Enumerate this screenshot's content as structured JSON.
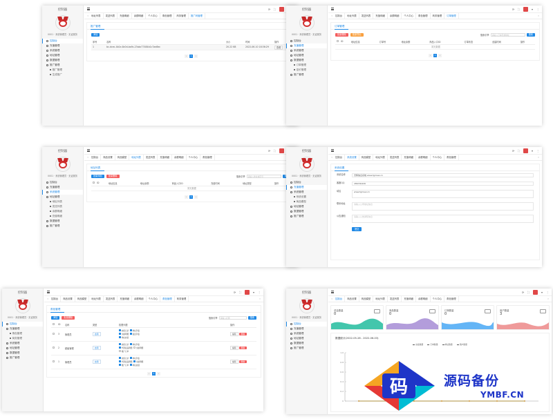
{
  "common": {
    "brand": "控制器",
    "user_info": "0001 · 系统管理员 · 无证服务",
    "tabs_row": [
      "首页",
      "地址列表",
      "发送列表",
      "充值明细",
      "余额明细",
      "个人中心",
      "角色管理",
      "商务管理",
      "订单管理",
      "推广码"
    ],
    "menu": [
      "控制台",
      "充值管理",
      "系统管理",
      "地址管理",
      "数据管理",
      "推广管理"
    ]
  },
  "p1": {
    "tabs": [
      "地址列表",
      "发送列表",
      "充值明细",
      "余额明细",
      "个人中心",
      "角色管理",
      "商务管理",
      "推广码管理"
    ],
    "active_tab": "推广码管理",
    "menu": [
      "控制台",
      "充值管理",
      "系统管理",
      "地址管理",
      "数据管理",
      "推广管理"
    ],
    "sub": [
      "推广管理",
      "生成推广"
    ],
    "title": "推广管理",
    "add": "添加",
    "headers": [
      "序号",
      "名称",
      "大小",
      "时间",
      "操作"
    ],
    "rows": [
      [
        "1",
        "bc-dcec-4b1e-8c0d-ba9c-23abc77484b1c7ae8ec",
        "20.22 KB",
        "2022-06-10 18:36:29",
        "查看"
      ]
    ],
    "page": "1"
  },
  "p2": {
    "tabs": [
      "控制台",
      "地址列表",
      "发送列表",
      "充值明细",
      "余额明细",
      "个人中心",
      "角色管理",
      "商务管理",
      "订单管理"
    ],
    "active_tab": "订单管理",
    "menu": [
      "控制台",
      "充值管理",
      "系统管理",
      "地址管理",
      "数据管理",
      "推广管理"
    ],
    "sub": [
      "订单管理",
      "定价管理"
    ],
    "title": "订单管理",
    "btn1": "批量删除",
    "btn2": "批量导出",
    "search_label": "搜索引擎",
    "search_placeholder": "请输入订单号或地址",
    "search_btn": "搜索",
    "headers": [
      "ID",
      "地址信息",
      "订单号",
      "地址余额",
      "商品入口ID",
      "订单状态",
      "创建时间",
      "操作"
    ],
    "empty": "暂无数据",
    "page": "1"
  },
  "p3": {
    "tabs": [
      "控制台",
      "商品设置",
      "商品模型",
      "地址列表",
      "发送列表",
      "充值明细",
      "余额明细",
      "个人中心",
      "角色管理"
    ],
    "active_tab": "地址列表",
    "menu": [
      "控制台",
      "充值管理",
      "系统管理",
      "地址管理",
      "数据管理",
      "推广管理"
    ],
    "sub": [
      "地址列表",
      "发送列表",
      "余额明细",
      "充值明细"
    ],
    "title": "地址列表",
    "btn1": "批量添加",
    "btn2": "批量删除",
    "search_label": "搜索引擎",
    "search_placeholder": "请输入地址或序号",
    "search_btn": "搜索",
    "headers": [
      "ID",
      "地址信息",
      "地址余额",
      "商品入口ID",
      "充值时间",
      "地址类型",
      "操作"
    ],
    "empty": "暂无数据",
    "page": "1"
  },
  "p4": {
    "tabs": [
      "控制台",
      "系统设置",
      "商品模型",
      "地址列表",
      "发送列表",
      "充值明细",
      "余额明细",
      "个人中心",
      "角色管理"
    ],
    "active_tab": "系统设置",
    "menu": [
      "控制台",
      "充值管理",
      "系统管理",
      "地址管理",
      "数据管理",
      "推广管理"
    ],
    "sub": [
      "系统设置",
      "商品模型"
    ],
    "title": "系统设置",
    "fields": [
      {
        "label": "系统名称",
        "value": "灵辉信息系统 www.tgmeei.cn"
      },
      {
        "label": "客服QQ",
        "value": "286700430"
      },
      {
        "label": "域名",
        "value": "www.tgmeei.cn"
      },
      {
        "label": "联系地址",
        "value": "请输入公司地址信息"
      },
      {
        "label": "公告通知",
        "value": "请输入公告通知信息"
      }
    ],
    "submit": "提交"
  },
  "p5": {
    "tabs": [
      "控制台",
      "商品设置",
      "商品模型",
      "地址列表",
      "发送列表",
      "充值明细",
      "余额明细",
      "个人中心",
      "角色管理",
      "商务管理"
    ],
    "active_tab": "角色管理",
    "menu": [
      "控制台",
      "充值管理",
      "系统管理",
      "地址管理",
      "数据管理",
      "推广管理"
    ],
    "sub": [
      "角色管理",
      "商务管理"
    ],
    "title": "角色管理",
    "btn1": "添加",
    "btn2": "批量删除",
    "search_label": "搜索引擎",
    "search_placeholder": "请输入名称",
    "search_btn": "搜索",
    "headers": [
      "ID",
      "名称",
      "类型",
      "权限列表",
      "操作"
    ],
    "rows": [
      {
        "id": "3",
        "name": "管理员",
        "type": "启用",
        "perms": [
          "充值记录",
          "地址列表",
          "余额明细",
          "发送列表",
          "地址充值"
        ]
      },
      {
        "id": "2",
        "name": "超级管理",
        "type": "启用",
        "perms": [
          "充值记录",
          "地址列表",
          "代理商品明细",
          "余额明细",
          "推广订单"
        ]
      },
      {
        "id": "1",
        "name": "管理员",
        "type": "启用",
        "perms": [
          "充值记录",
          "地址列表",
          "代理商品明细",
          "余额明细",
          "推广订单",
          "地址充值"
        ]
      }
    ],
    "edit": "编辑",
    "del": "删除",
    "page": "1"
  },
  "p6": {
    "tabs": [
      "控制台",
      "商品设置",
      "商品模型",
      "地址列表",
      "发送列表",
      "充值明细",
      "余额明细",
      "个人中心",
      "角色管理"
    ],
    "active_tab": "控制台",
    "menu": [
      "控制台",
      "充值管理",
      "系统管理",
      "地址管理",
      "数据管理",
      "推广管理"
    ],
    "stats": [
      {
        "label": "总会数量",
        "value": "0",
        "color": "#43c6ac"
      },
      {
        "label": "商品数量",
        "value": "0",
        "color": "#b39ddb"
      },
      {
        "label": "订单数量",
        "value": "0",
        "color": "#64b5f6"
      },
      {
        "label": "用户数量",
        "value": "3",
        "color": "#ef9a9a"
      }
    ],
    "chart_title": "数据统计(2022-05-28 - 2022-06-03)",
    "legend": [
      "总会数量",
      "订单数量",
      "地址数量",
      "用户数量"
    ],
    "chart_data": {
      "type": "line",
      "title": "数据统计(2022-05-28 - 2022-06-03)",
      "categories": [
        "05-28",
        "05-29",
        "05-30",
        "05-31",
        "06-01",
        "06-02",
        "06-03"
      ],
      "series": [
        {
          "name": "总会数量",
          "values": [
            0,
            0,
            0,
            0,
            0,
            0,
            0
          ]
        },
        {
          "name": "订单数量",
          "values": [
            0,
            0,
            0,
            0,
            0,
            0,
            0
          ]
        },
        {
          "name": "地址数量",
          "values": [
            0,
            0,
            0,
            0,
            0,
            0,
            0
          ]
        },
        {
          "name": "用户数量",
          "values": [
            0,
            0,
            0,
            0,
            0,
            0,
            0
          ]
        }
      ],
      "yticks": [
        "1.0",
        "0.8",
        "0.6",
        "0.4",
        "0.2",
        "0"
      ],
      "ylim": [
        0,
        1
      ]
    }
  },
  "watermark": {
    "glyph": "码",
    "big": "源码备份",
    "small": "YMBF.CN",
    "colors": [
      "#f5a623",
      "#e53935",
      "#1e35c8",
      "#00bcd4"
    ]
  }
}
